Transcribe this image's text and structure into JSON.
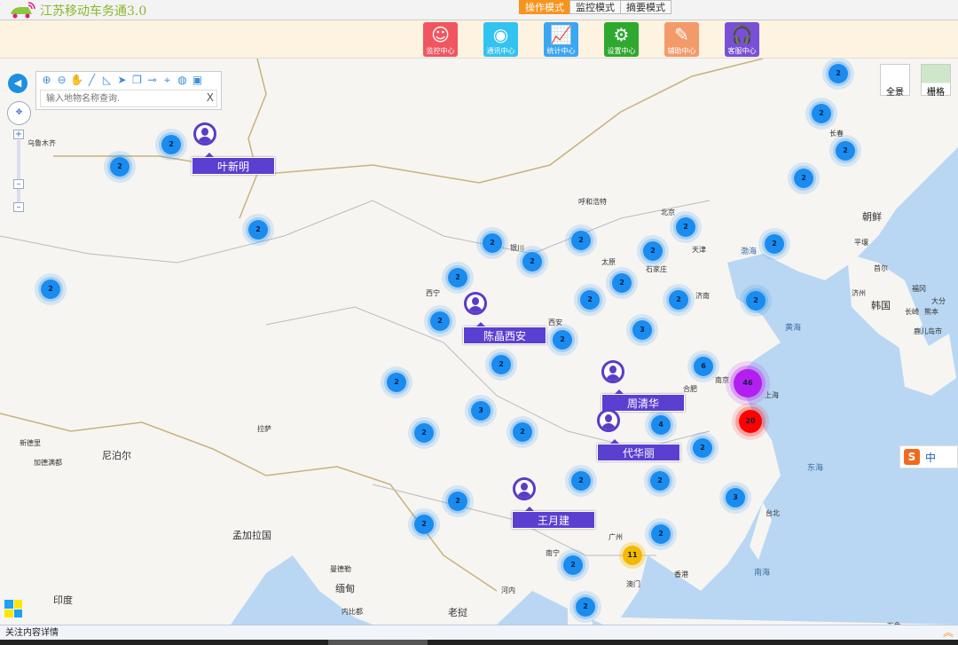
{
  "app": {
    "title": "江苏移动车务通3.0"
  },
  "modes": [
    {
      "label": "操作模式",
      "active": true
    },
    {
      "label": "监控模式",
      "active": false
    },
    {
      "label": "摘要模式",
      "active": false
    }
  ],
  "toolbar": [
    {
      "label": "监控中心",
      "icon": "headset-person-icon",
      "color": "#f0565f"
    },
    {
      "label": "通讯中心",
      "icon": "webcam-icon",
      "color": "#33c3f0"
    },
    {
      "label": "统计中心",
      "icon": "bar-chart-icon",
      "color": "#3ba6f2"
    },
    {
      "label": "设置中心",
      "icon": "gears-icon",
      "color": "#2fa82f"
    },
    {
      "label": "辅助中心",
      "icon": "pencil-ruler-icon",
      "color": "#f39a6a"
    },
    {
      "label": "客服中心",
      "icon": "headphones-icon",
      "color": "#7a4fd8"
    }
  ],
  "map_tools": {
    "icons": [
      "zoom-in-icon",
      "zoom-out-icon",
      "pan-hand-icon",
      "ruler-icon",
      "area-measure-icon",
      "navigate-icon",
      "copy-icon",
      "line-icon",
      "location-pin-icon",
      "globe-icon",
      "save-icon"
    ],
    "search_placeholder": "输入地物名称查询.",
    "clear": "X"
  },
  "view_buttons": [
    {
      "label": "全景"
    },
    {
      "label": "栅格"
    }
  ],
  "clusters": [
    2,
    2,
    2,
    2,
    2,
    2,
    2,
    2,
    2,
    2,
    2,
    2,
    2,
    2,
    2,
    2,
    2,
    2,
    2,
    2,
    2,
    3,
    2,
    2,
    6,
    46,
    20,
    3,
    4,
    2,
    2,
    2,
    2,
    2,
    2,
    3,
    2,
    2,
    2,
    11,
    2
  ],
  "cluster_colors": {
    "default": "#1a8cf0",
    "large": "#b21ff0",
    "alert": "#ff0000",
    "medium": "#f5b800"
  },
  "persons": [
    "叶新明",
    "陈晶西安",
    "周清华",
    "代华丽",
    "王月建"
  ],
  "places": {
    "cities": [
      "长春",
      "北京",
      "天津",
      "呼和浩特",
      "银川",
      "太原",
      "石家庄",
      "济南",
      "西宁",
      "西安",
      "合肥",
      "南京",
      "上海",
      "拉萨",
      "广州",
      "香港",
      "澳门",
      "南宁",
      "台北",
      "首尔",
      "平壤",
      "济州",
      "福冈",
      "大分",
      "长崎",
      "熊本",
      "鹿儿岛市",
      "乌鲁木齐",
      "新德里",
      "加德满都",
      "曼德勒",
      "内比都",
      "万象",
      "河内"
    ],
    "countries": [
      "朝鲜",
      "韩国",
      "尼泊尔",
      "孟加拉国",
      "缅甸",
      "印度",
      "老挝"
    ],
    "seas": [
      "渤海",
      "黄海",
      "东海",
      "南海"
    ]
  },
  "ime": {
    "label": "中"
  },
  "status": {
    "text": "关注内容详情"
  }
}
